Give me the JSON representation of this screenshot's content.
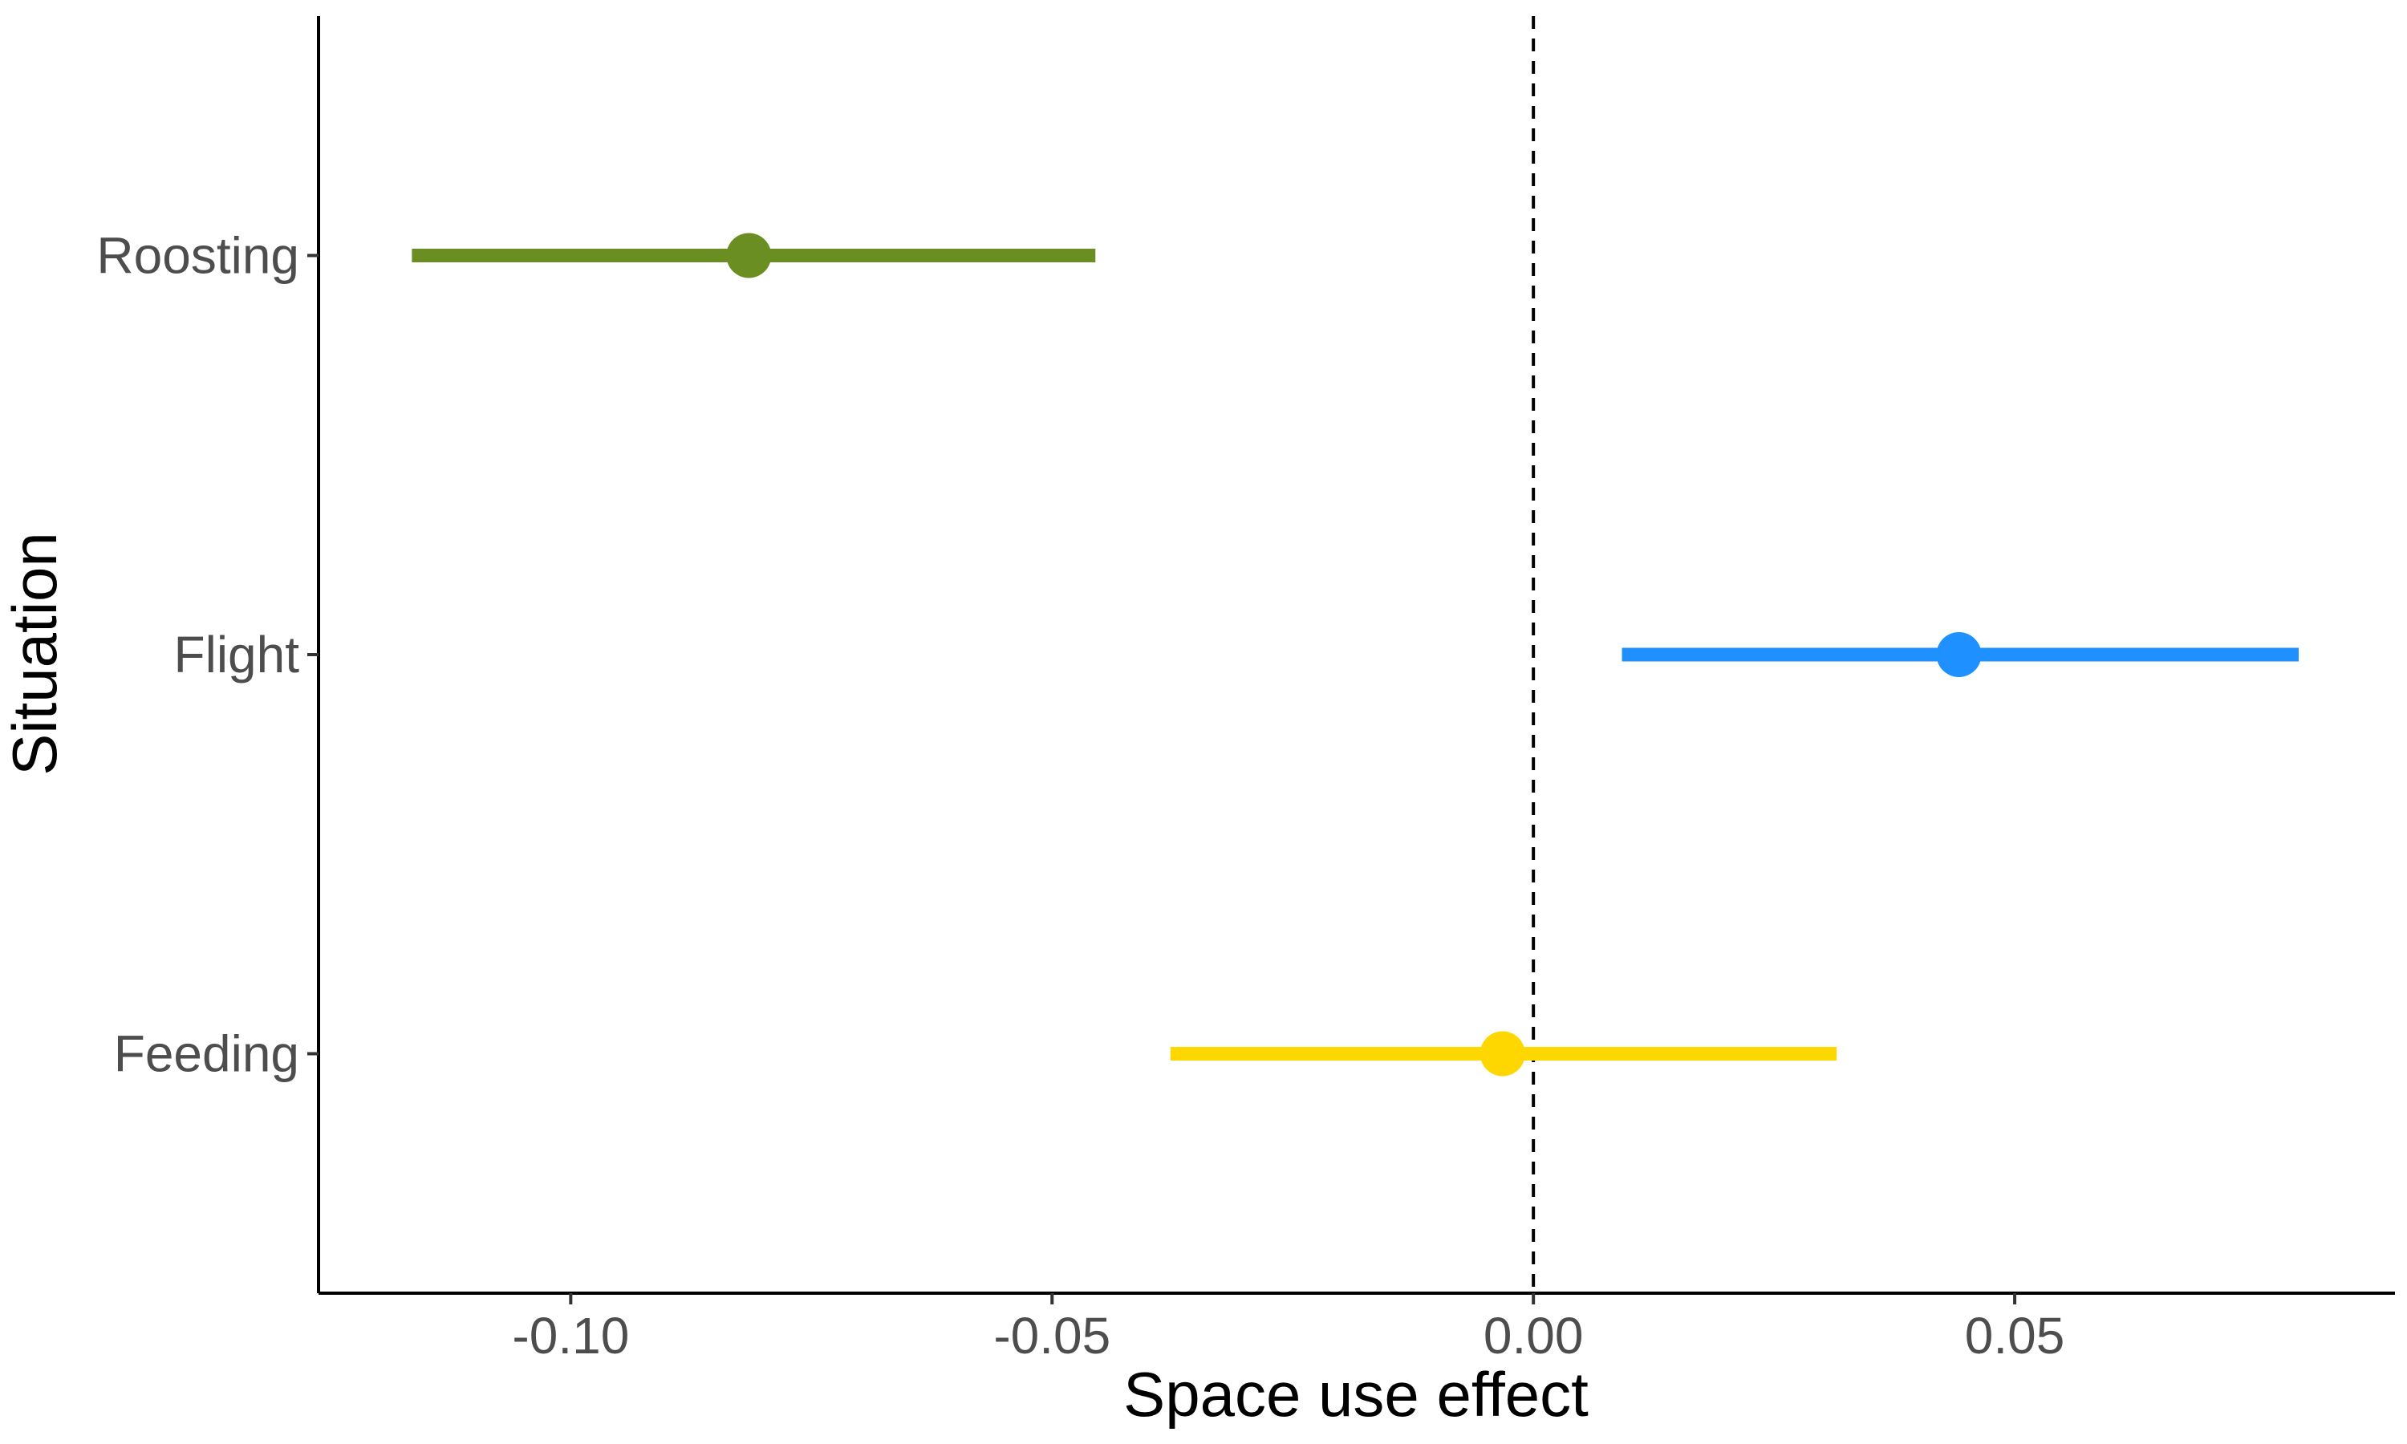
{
  "chart_data": {
    "type": "scatter",
    "subtype": "point-range",
    "title": "",
    "xlabel": "Space use effect",
    "ylabel": "Situation",
    "categories": [
      "Feeding",
      "Flight",
      "Roosting"
    ],
    "points": [
      {
        "category": "Roosting",
        "estimate": -0.0815,
        "lower": -0.1165,
        "upper": -0.0455,
        "color": "#6B8E23"
      },
      {
        "category": "Flight",
        "estimate": 0.0442,
        "lower": 0.0092,
        "upper": 0.0795,
        "color": "#1E90FF"
      },
      {
        "category": "Feeding",
        "estimate": -0.0032,
        "lower": -0.0377,
        "upper": 0.0315,
        "color": "#FFD700"
      }
    ],
    "xlim": [
      -0.1262,
      0.0895
    ],
    "x_ticks": [
      -0.1,
      -0.05,
      0.0,
      0.05
    ],
    "x_tick_labels": [
      "-0.10",
      "-0.05",
      "0.00",
      "0.05"
    ],
    "reference_line": {
      "x": 0,
      "style": "dashed"
    },
    "grid": false,
    "legend": "none"
  }
}
